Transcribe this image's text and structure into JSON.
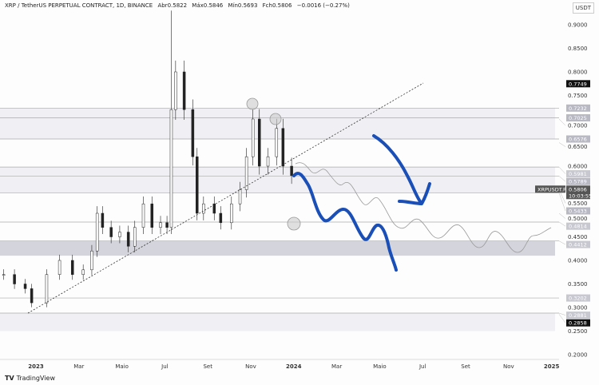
{
  "header": {
    "symbol": "XRP / TetherUS PERPETUAL CONTRACT, 1D, BINANCE",
    "open": "Abr0.5822",
    "high": "Máx0.5846",
    "low": "Mín0.5693",
    "close": "Fch0.5806",
    "change": "−0.0016 (−0.27%)",
    "currency": "USDT"
  },
  "footer": {
    "brand": "TradingView"
  },
  "chart_data": {
    "type": "candlestick",
    "title": "XRP / TetherUS PERPETUAL CONTRACT, 1D, BINANCE",
    "ylim": [
      0.2,
      0.9
    ],
    "y_ticks": [
      "0.9000",
      "0.8500",
      "0.8000",
      "0.7500",
      "0.7000",
      "0.6500",
      "0.6000",
      "0.5500",
      "0.5000",
      "0.4500",
      "0.4000",
      "0.3500",
      "0.3000",
      "0.2500",
      "0.2000"
    ],
    "x_ticks": [
      {
        "label": "2023",
        "m": 0
      },
      {
        "label": "Mar",
        "m": 2
      },
      {
        "label": "Maio",
        "m": 4
      },
      {
        "label": "Jul",
        "m": 6
      },
      {
        "label": "Set",
        "m": 8
      },
      {
        "label": "Nov",
        "m": 10
      },
      {
        "label": "2024",
        "m": 12
      },
      {
        "label": "Mar",
        "m": 14
      },
      {
        "label": "Maio",
        "m": 16
      },
      {
        "label": "Jul",
        "m": 18
      },
      {
        "label": "Set",
        "m": 20
      },
      {
        "label": "Nov",
        "m": 22
      },
      {
        "label": "2025",
        "m": 24
      }
    ],
    "x_unit": "months since Jan 2023",
    "closes": [
      [
        -1.5,
        0.37
      ],
      [
        -1,
        0.35
      ],
      [
        -0.5,
        0.34
      ],
      [
        -0.2,
        0.31
      ],
      [
        0.5,
        0.37
      ],
      [
        1.1,
        0.4
      ],
      [
        1.7,
        0.37
      ],
      [
        2.2,
        0.38
      ],
      [
        2.6,
        0.42
      ],
      [
        2.85,
        0.5
      ],
      [
        3.1,
        0.47
      ],
      [
        3.5,
        0.45
      ],
      [
        3.9,
        0.46
      ],
      [
        4.3,
        0.43
      ],
      [
        4.6,
        0.47
      ],
      [
        5.0,
        0.52
      ],
      [
        5.4,
        0.47
      ],
      [
        5.8,
        0.48
      ],
      [
        6.1,
        0.47
      ],
      [
        6.3,
        0.72
      ],
      [
        6.5,
        0.8
      ],
      [
        6.9,
        0.72
      ],
      [
        7.3,
        0.62
      ],
      [
        7.5,
        0.5
      ],
      [
        7.8,
        0.52
      ],
      [
        8.3,
        0.5
      ],
      [
        8.6,
        0.48
      ],
      [
        9.1,
        0.52
      ],
      [
        9.5,
        0.55
      ],
      [
        9.8,
        0.62
      ],
      [
        10.1,
        0.7
      ],
      [
        10.4,
        0.6
      ],
      [
        10.8,
        0.62
      ],
      [
        11.2,
        0.68
      ],
      [
        11.5,
        0.6
      ],
      [
        11.9,
        0.58
      ]
    ],
    "levels": [
      {
        "value": 0.7749,
        "label": "0.7749",
        "style": "dark"
      },
      {
        "value": 0.7232,
        "label": "0.7232",
        "style": "grey"
      },
      {
        "value": 0.7025,
        "label": "0.7025",
        "style": "grey"
      },
      {
        "value": 0.6576,
        "label": "0.6576",
        "style": "grey"
      },
      {
        "value": 0.5981,
        "label": "0.5981",
        "style": "light"
      },
      {
        "value": 0.5789,
        "label": "0.5789",
        "style": "grey"
      },
      {
        "value": 0.5433,
        "label": "0.5433",
        "style": "grey"
      },
      {
        "value": 0.4814,
        "label": "0.4814",
        "style": "light"
      },
      {
        "value": 0.4412,
        "label": "0.4412",
        "style": "light"
      },
      {
        "value": 0.3202,
        "label": "0.3202",
        "style": "light"
      },
      {
        "value": 0.2881,
        "label": "0.2881",
        "style": "light"
      },
      {
        "value": 0.2858,
        "label": "0.2858",
        "style": "dark"
      }
    ],
    "last_price": {
      "symbol": "XRPUSDT.P",
      "price": "0.5806",
      "countdown": "10:03:55"
    },
    "zones": [
      [
        0.6576,
        0.7232
      ],
      [
        0.5433,
        0.5981
      ],
      [
        0.41,
        0.4412
      ],
      [
        0.25,
        0.2881
      ]
    ]
  }
}
